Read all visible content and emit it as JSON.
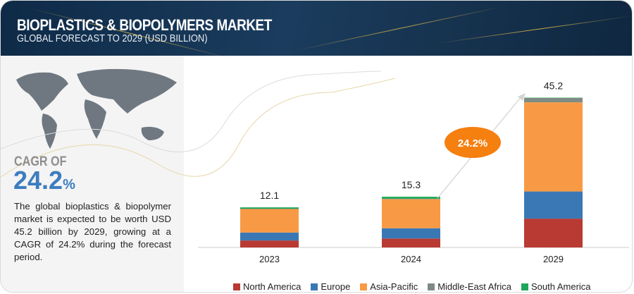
{
  "header": {
    "title": "BIOPLASTICS & BIOPOLYMERS MARKET",
    "subtitle": "GLOBAL FORECAST TO 2029 (USD BILLION)"
  },
  "sidebar": {
    "cagr_label": "CAGR OF",
    "cagr_value": "24.2",
    "cagr_unit": "%",
    "description": "The global bioplastics & biopolymer market is expected to be worth USD 45.2 billion by 2029, growing at a CAGR of 24.2% during the forecast period."
  },
  "chart_data": {
    "type": "bar",
    "stacked": true,
    "categories": [
      "2023",
      "2024",
      "2029"
    ],
    "totals": [
      "12.1",
      "15.3",
      "45.2"
    ],
    "series": [
      {
        "name": "North America",
        "color": "#b83a32",
        "values": [
          2.1,
          2.7,
          8.7
        ]
      },
      {
        "name": "Europe",
        "color": "#3a78b5",
        "values": [
          2.4,
          3.1,
          8.2
        ]
      },
      {
        "name": "Asia-Pacific",
        "color": "#f89a45",
        "values": [
          7.1,
          8.8,
          26.9
        ]
      },
      {
        "name": "Middle-East Africa",
        "color": "#7f8a85",
        "values": [
          0.1,
          0.1,
          1.3
        ]
      },
      {
        "name": "South America",
        "color": "#1fa65a",
        "values": [
          0.4,
          0.6,
          0.1
        ]
      }
    ],
    "annotation": "24.2%",
    "annotation_color": "#f57f0f",
    "legend_position": "bottom",
    "grid": false
  }
}
